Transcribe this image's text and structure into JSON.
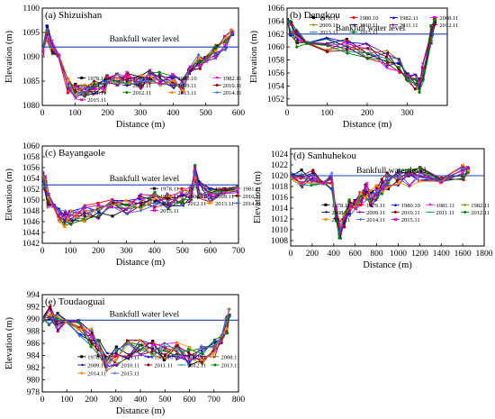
{
  "chart_data": [
    {
      "panel": "a",
      "title": "(a) Shizuishan",
      "type": "line",
      "xlabel": "Distance (m)",
      "ylabel": "Elevation (m)",
      "xlim": [
        0,
        600
      ],
      "ylim": [
        1080,
        1100
      ],
      "xticks": [
        0,
        100,
        200,
        300,
        400,
        500,
        600
      ],
      "yticks": [
        1080,
        1085,
        1090,
        1095,
        1100
      ],
      "bankfull": {
        "label": "Bankfull water level",
        "value": 1092
      },
      "legend": [
        "1978.11",
        "1979.11",
        "1980.10",
        "1982.11",
        "1983.11",
        "2008.11",
        "2009.11",
        "2010.11",
        "2011.11",
        "2012.11",
        "2013.11",
        "2014.11",
        "2015.11"
      ],
      "profile": {
        "x": [
          0,
          15,
          30,
          50,
          80,
          100,
          130,
          160,
          190,
          200,
          230,
          260,
          300,
          330,
          360,
          400,
          430,
          450,
          480,
          500,
          530,
          560,
          580
        ],
        "y": [
          1091,
          1095,
          1092,
          1089,
          1084,
          1083,
          1083,
          1083.5,
          1084,
          1085,
          1085,
          1085.5,
          1085,
          1086,
          1085.5,
          1085,
          1084,
          1088,
          1089,
          1090,
          1091,
          1093,
          1095
        ]
      },
      "spread": 1.5
    },
    {
      "panel": "b",
      "title": "(b) Dengkou",
      "type": "line",
      "xlabel": "Distance (m)",
      "ylabel": "Elevation (m)",
      "xlim": [
        0,
        400
      ],
      "ylim": [
        1051,
        1066
      ],
      "xticks": [
        0,
        100,
        200,
        300
      ],
      "yticks": [
        1052,
        1054,
        1056,
        1058,
        1060,
        1062,
        1064,
        1066
      ],
      "bankfull": {
        "label": "Bankfull water level",
        "value": 1062
      },
      "legend": [
        "1978.11",
        "1980.10",
        "1982.11",
        "2008.11",
        "2009.11",
        "2010.11",
        "2011.11",
        "2012.11",
        "2013.11",
        "2015.11"
      ],
      "profile": {
        "x": [
          0,
          10,
          25,
          50,
          100,
          150,
          200,
          250,
          280,
          300,
          320,
          330,
          340,
          360,
          368
        ],
        "y": [
          1064,
          1062.5,
          1061.5,
          1061,
          1060.5,
          1060,
          1059.5,
          1058,
          1057,
          1056,
          1055,
          1054,
          1056,
          1062,
          1064
        ]
      },
      "spread": 1.5
    },
    {
      "panel": "c",
      "title": "(c) Bayangaole",
      "type": "line",
      "xlabel": "Distance (m)",
      "ylabel": "Elevation (m)",
      "xlim": [
        0,
        700
      ],
      "ylim": [
        1042,
        1060
      ],
      "xticks": [
        0,
        100,
        200,
        300,
        400,
        500,
        600,
        700
      ],
      "yticks": [
        1042,
        1044,
        1046,
        1048,
        1050,
        1052,
        1054,
        1056,
        1058,
        1060
      ],
      "bankfull": {
        "label": "Bankfull water level",
        "value": 1052.8
      },
      "legend": [
        "1978.11",
        "1979.11",
        "1980.10",
        "1981.11",
        "1982.11",
        "2008.11",
        "2009.11",
        "2010.11",
        "2011.11",
        "2012.11",
        "2013.11",
        "2014.11",
        "2015.11"
      ],
      "profile": {
        "x": [
          0,
          10,
          20,
          40,
          60,
          80,
          100,
          150,
          200,
          250,
          300,
          350,
          400,
          450,
          500,
          530,
          545,
          560,
          600,
          650,
          700
        ],
        "y": [
          1055,
          1053,
          1050,
          1048,
          1047,
          1046.5,
          1047,
          1047.5,
          1048,
          1048.5,
          1049,
          1049.5,
          1050,
          1050,
          1050.5,
          1051,
          1055,
          1052,
          1051,
          1051,
          1052
        ]
      },
      "spread": 1.6
    },
    {
      "panel": "d",
      "title": "(d) Sanhuhekou",
      "type": "line",
      "xlabel": "Distance (m)",
      "ylabel": "Elevation (m)",
      "xlim": [
        0,
        1800
      ],
      "ylim": [
        1007,
        1025
      ],
      "xticks": [
        0,
        200,
        400,
        600,
        800,
        1000,
        1200,
        1400,
        1600,
        1800
      ],
      "yticks": [
        1008,
        1010,
        1012,
        1014,
        1016,
        1018,
        1020,
        1022,
        1024
      ],
      "bankfull": {
        "label": "Bankfull water level",
        "value": 1020
      },
      "legend": [
        "1978.11",
        "1979.11",
        "1980.10",
        "1981.11",
        "1982.11",
        "2008.11",
        "2009.11",
        "2010.11",
        "2011.11",
        "2012.11",
        "2013.11",
        "2014.11",
        "2015.11"
      ],
      "profile": {
        "x": [
          0,
          100,
          200,
          300,
          380,
          420,
          460,
          500,
          550,
          600,
          650,
          700,
          750,
          800,
          850,
          900,
          1000,
          1100,
          1200,
          1400,
          1600,
          1650
        ],
        "y": [
          1020,
          1019.5,
          1019.5,
          1019.5,
          1019,
          1013,
          1010,
          1012,
          1014,
          1015,
          1016,
          1017,
          1016,
          1017,
          1018,
          1019,
          1019.5,
          1019.5,
          1020,
          1019.5,
          1020.5,
          1021
        ]
      },
      "spread": 1.6
    },
    {
      "panel": "e",
      "title": "(e) Toudaoguai",
      "type": "line",
      "xlabel": "Distance (m)",
      "ylabel": "Elevation (m)",
      "xlim": [
        0,
        800
      ],
      "ylim": [
        978,
        994
      ],
      "xticks": [
        0,
        100,
        200,
        300,
        400,
        500,
        600,
        700,
        800
      ],
      "yticks": [
        978,
        980,
        982,
        984,
        986,
        988,
        990,
        992,
        994
      ],
      "bankfull": {
        "label": "Bankfull water level",
        "value": 989.8
      },
      "legend": [
        "1978.11",
        "1979.11",
        "1980.10",
        "1982.11",
        "2008.11",
        "2009.11",
        "2010.11",
        "2011.11",
        "2012.11",
        "2013.11",
        "2014.11",
        "2015.11"
      ],
      "profile": {
        "x": [
          0,
          30,
          60,
          100,
          150,
          200,
          230,
          260,
          300,
          350,
          400,
          450,
          500,
          550,
          600,
          650,
          700,
          730,
          750,
          760
        ],
        "y": [
          990,
          990.5,
          989.5,
          989,
          988.5,
          987,
          985,
          983,
          984,
          985,
          985.5,
          985,
          984.5,
          984.5,
          984,
          984,
          985,
          986,
          989,
          991
        ]
      },
      "spread": 1.6
    }
  ],
  "series_colors": [
    "#000000",
    "#ff0000",
    "#0000ff",
    "#ff00ff",
    "#808000",
    "#000080",
    "#800080",
    "#8b0000",
    "#008080",
    "#008000",
    "#ff8c00",
    "#4169e1",
    "#c000c0"
  ],
  "series_markers": [
    "square",
    "circle",
    "triangle-up",
    "triangle-down",
    "diamond",
    "triangle-left",
    "triangle-right",
    "hexagon",
    "star",
    "pentagon",
    "circle",
    "cross",
    "x"
  ]
}
